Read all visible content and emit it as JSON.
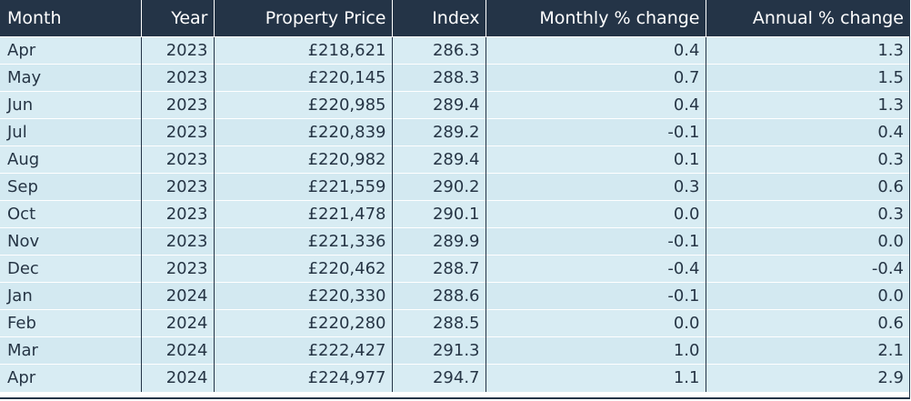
{
  "chart_data": {
    "type": "table",
    "columns": [
      "Month",
      "Year",
      "Property Price",
      "Index",
      "Monthly % change",
      "Annual % change"
    ],
    "rows": [
      [
        "Apr",
        "2023",
        "£218,621",
        "286.3",
        "0.4",
        "1.3"
      ],
      [
        "May",
        "2023",
        "£220,145",
        "288.3",
        "0.7",
        "1.5"
      ],
      [
        "Jun",
        "2023",
        "£220,985",
        "289.4",
        "0.4",
        "1.3"
      ],
      [
        "Jul",
        "2023",
        "£220,839",
        "289.2",
        "-0.1",
        "0.4"
      ],
      [
        "Aug",
        "2023",
        "£220,982",
        "289.4",
        "0.1",
        "0.3"
      ],
      [
        "Sep",
        "2023",
        "£221,559",
        "290.2",
        "0.3",
        "0.6"
      ],
      [
        "Oct",
        "2023",
        "£221,478",
        "290.1",
        "0.0",
        "0.3"
      ],
      [
        "Nov",
        "2023",
        "£221,336",
        "289.9",
        "-0.1",
        "0.0"
      ],
      [
        "Dec",
        "2023",
        "£220,462",
        "288.7",
        "-0.4",
        "-0.4"
      ],
      [
        "Jan",
        "2024",
        "£220,330",
        "288.6",
        "-0.1",
        "0.0"
      ],
      [
        "Feb",
        "2024",
        "£220,280",
        "288.5",
        "0.0",
        "0.6"
      ],
      [
        "Mar",
        "2024",
        "£222,427",
        "291.3",
        "1.0",
        "2.1"
      ],
      [
        "Apr",
        "2024",
        "£224,977",
        "294.7",
        "1.1",
        "2.9"
      ]
    ]
  },
  "colors": {
    "header_bg": "#243447",
    "row_bg": "#d8ecf3",
    "text": "#263545"
  }
}
